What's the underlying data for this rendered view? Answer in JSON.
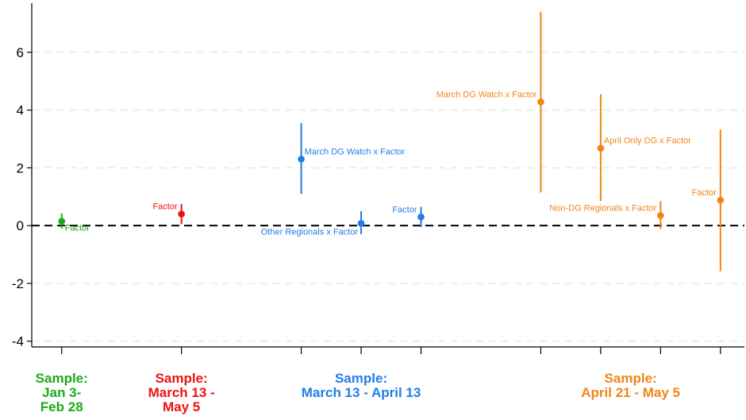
{
  "chart_data": {
    "type": "coefficient-plot",
    "title": "",
    "xlabel": "",
    "ylabel": "",
    "ylim": [
      -4.2,
      7.7
    ],
    "yticks": [
      -4,
      -2,
      0,
      2,
      4,
      6
    ],
    "ytick_labels": [
      "-4",
      "-2",
      "0",
      "2",
      "4",
      "6"
    ],
    "grid": true,
    "reference_line": 0,
    "x_ticks": [
      1,
      3,
      5,
      6,
      7,
      9,
      10,
      11,
      12
    ],
    "groups": [
      {
        "name_lines": [
          "Sample:",
          "Jan 3-",
          "Feb 28"
        ],
        "center": 1,
        "color": "#1aaa1a"
      },
      {
        "name_lines": [
          "Sample:",
          "March 13 -",
          "May 5"
        ],
        "center": 3,
        "color": "#ee1111"
      },
      {
        "name_lines": [
          "Sample:",
          "March 13 - April 13"
        ],
        "center": 6,
        "color": "#1f7ee8"
      },
      {
        "name_lines": [
          "Sample:",
          "April 21 - May 5"
        ],
        "center": 10.5,
        "color": "#f08516"
      }
    ],
    "points": [
      {
        "label": "Factor",
        "x": 1,
        "y": 0.15,
        "lo": -0.1,
        "hi": 0.42,
        "color": "#1aaa1a",
        "label_pos": "below-right"
      },
      {
        "label": "Factor",
        "x": 3,
        "y": 0.4,
        "lo": 0.05,
        "hi": 0.75,
        "color": "#ee1111",
        "label_pos": "above-left"
      },
      {
        "label": "March DG Watch x Factor",
        "x": 5,
        "y": 2.3,
        "lo": 1.1,
        "hi": 3.55,
        "color": "#1f7ee8",
        "label_pos": "above-right"
      },
      {
        "label": "Other Regionals x Factor",
        "x": 6,
        "y": 0.08,
        "lo": -0.3,
        "hi": 0.5,
        "color": "#1f7ee8",
        "label_pos": "below-left"
      },
      {
        "label": "Factor",
        "x": 7,
        "y": 0.3,
        "lo": -0.05,
        "hi": 0.65,
        "color": "#1f7ee8",
        "label_pos": "above-left"
      },
      {
        "label": "March DG Watch x Factor",
        "x": 9,
        "y": 4.28,
        "lo": 1.15,
        "hi": 7.4,
        "color": "#f08516",
        "label_pos": "above-left"
      },
      {
        "label": "April Only DG x Factor",
        "x": 10,
        "y": 2.68,
        "lo": 0.85,
        "hi": 4.55,
        "color": "#f08516",
        "label_pos": "above-right"
      },
      {
        "label": "Non-DG Regionals x Factor",
        "x": 11,
        "y": 0.35,
        "lo": -0.12,
        "hi": 0.85,
        "color": "#f08516",
        "label_pos": "above-left"
      },
      {
        "label": "Factor",
        "x": 12,
        "y": 0.88,
        "lo": -1.58,
        "hi": 3.32,
        "color": "#f08516",
        "label_pos": "above-left"
      }
    ]
  }
}
